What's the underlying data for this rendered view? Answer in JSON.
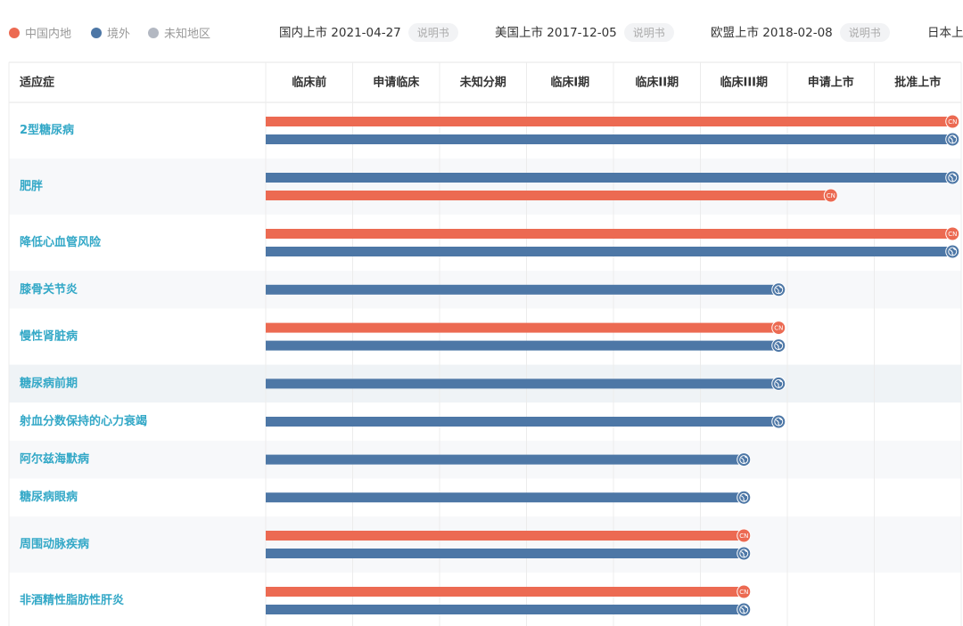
{
  "legend": [
    {
      "label": "中国内地",
      "region": "cn",
      "color": "#ec6a52"
    },
    {
      "label": "境外",
      "region": "global",
      "color": "#4d77a6"
    },
    {
      "label": "未知地区",
      "region": "unknown",
      "color": "#b3b8c2"
    }
  ],
  "launches": [
    {
      "label": "国内上市",
      "date": "2021-04-27",
      "doc": "说明书"
    },
    {
      "label": "美国上市",
      "date": "2017-12-05",
      "doc": "说明书"
    },
    {
      "label": "欧盟上市",
      "date": "2018-02-08",
      "doc": "说明书"
    },
    {
      "label": "日本上"
    }
  ],
  "table": {
    "header": "适应症",
    "stages": [
      "临床前",
      "申请临床",
      "未知分期",
      "临床I期",
      "临床II期",
      "临床III期",
      "申请上市",
      "批准上市"
    ],
    "cn_icon": "CN",
    "rows": [
      {
        "indication": "2型糖尿病",
        "bars": [
          {
            "region": "cn",
            "progress": 7.9
          },
          {
            "region": "global",
            "progress": 7.9
          }
        ]
      },
      {
        "indication": "肥胖",
        "bars": [
          {
            "region": "global",
            "progress": 7.9
          },
          {
            "region": "cn",
            "progress": 6.5
          }
        ]
      },
      {
        "indication": "降低心血管风险",
        "bars": [
          {
            "region": "cn",
            "progress": 7.9
          },
          {
            "region": "global",
            "progress": 7.9
          }
        ]
      },
      {
        "indication": "膝骨关节炎",
        "bars": [
          {
            "region": "global",
            "progress": 5.9
          }
        ]
      },
      {
        "indication": "慢性肾脏病",
        "bars": [
          {
            "region": "cn",
            "progress": 5.9
          },
          {
            "region": "global",
            "progress": 5.9
          }
        ]
      },
      {
        "indication": "糖尿病前期",
        "bars": [
          {
            "region": "global",
            "progress": 5.9
          }
        ]
      },
      {
        "indication": "射血分数保持的心力衰竭",
        "bars": [
          {
            "region": "global",
            "progress": 5.9
          }
        ]
      },
      {
        "indication": "阿尔兹海默病",
        "bars": [
          {
            "region": "global",
            "progress": 5.5
          }
        ]
      },
      {
        "indication": "糖尿病眼病",
        "bars": [
          {
            "region": "global",
            "progress": 5.5
          }
        ]
      },
      {
        "indication": "周围动脉疾病",
        "bars": [
          {
            "region": "cn",
            "progress": 5.5
          },
          {
            "region": "global",
            "progress": 5.5
          }
        ]
      },
      {
        "indication": "非酒精性脂肪性肝炎",
        "bars": [
          {
            "region": "cn",
            "progress": 5.5
          },
          {
            "region": "global",
            "progress": 5.5
          }
        ]
      }
    ]
  }
}
